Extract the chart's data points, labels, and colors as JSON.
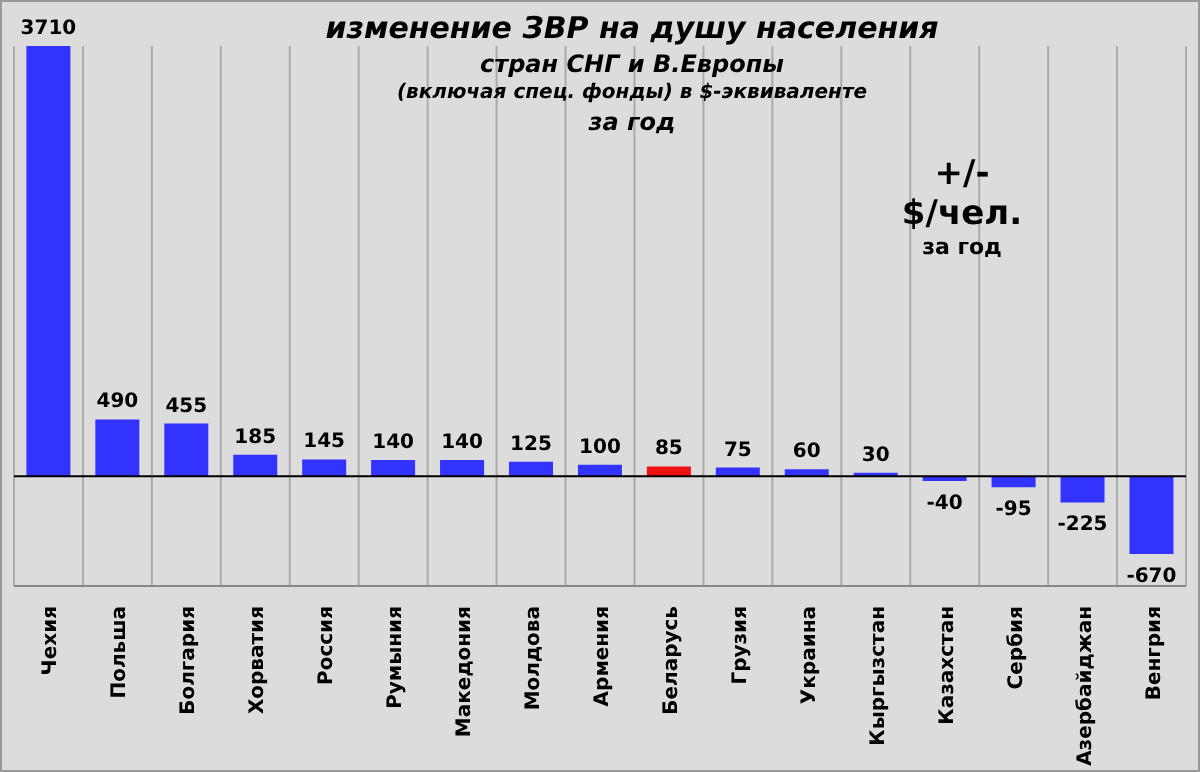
{
  "chart_data": {
    "type": "bar",
    "title": "изменение  ЗВР на душу населения",
    "subtitle": "стран СНГ и В.Европы\n(включая  спец. фонды) в $-эквиваленте\nза год",
    "annotations": [
      "+/-",
      "$/чел.",
      "за год"
    ],
    "categories": [
      "Чехия",
      "Польша",
      "Болгария",
      "Хорватия",
      "Россия",
      "Румыния",
      "Македония",
      "Молдова",
      "Армения",
      "Беларусь",
      "Грузия",
      "Украина",
      "Кыргызстан",
      "Казахстан",
      "Сербия",
      "Азербайджан",
      "Венгрия"
    ],
    "values": [
      3710,
      490,
      455,
      185,
      145,
      140,
      140,
      125,
      100,
      85,
      75,
      60,
      30,
      -40,
      -95,
      -225,
      -670
    ],
    "colors": [
      "#3333ff",
      "#3333ff",
      "#3333ff",
      "#3333ff",
      "#3333ff",
      "#3333ff",
      "#3333ff",
      "#3333ff",
      "#3333ff",
      "#ee1111",
      "#3333ff",
      "#3333ff",
      "#3333ff",
      "#3333ff",
      "#3333ff",
      "#3333ff",
      "#3333ff"
    ],
    "data_labels": true,
    "grid": "x"
  }
}
